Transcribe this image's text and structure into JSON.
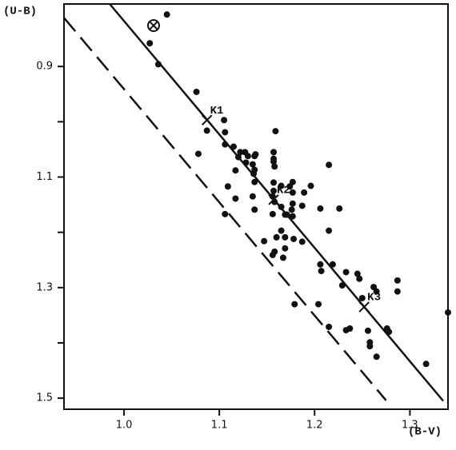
{
  "chart_data": {
    "type": "scatter",
    "y_label": "(U-B)",
    "x_label": "(B-V)",
    "xlim": [
      0.937,
      1.34
    ],
    "xticks": [
      {
        "value": 1.0,
        "label": "1.0"
      },
      1.1,
      1.2,
      1.3
    ],
    "ylim": [
      1.52,
      0.787
    ],
    "yticks": [
      0.9,
      1.1,
      1.3,
      1.5
    ],
    "yminor_ticks": [
      1.0,
      1.2,
      1.4
    ],
    "color": "#111111",
    "x": [
      1.045,
      1.027,
      1.036,
      1.076,
      1.078,
      1.087,
      1.105,
      1.106,
      1.106,
      1.115,
      1.122,
      1.12,
      1.127,
      1.13,
      1.137,
      1.138,
      1.128,
      1.135,
      1.137,
      1.159,
      1.157,
      1.157,
      1.157,
      1.158,
      1.136,
      1.137,
      1.157,
      1.117,
      1.109,
      1.117,
      1.106,
      1.135,
      1.137,
      1.157,
      1.156,
      1.158,
      1.165,
      1.174,
      1.177,
      1.189,
      1.196,
      1.215,
      1.206,
      1.226,
      1.177,
      1.165,
      1.176,
      1.187,
      1.156,
      1.169,
      1.177,
      1.165,
      1.169,
      1.16,
      1.158,
      1.156,
      1.169,
      1.167,
      1.147,
      1.171,
      1.178,
      1.187,
      1.215,
      1.206,
      1.207,
      1.219,
      1.233,
      1.229,
      1.245,
      1.247,
      1.25,
      1.262,
      1.265,
      1.287,
      1.287,
      1.233,
      1.237,
      1.215,
      1.204,
      1.179,
      1.256,
      1.258,
      1.258,
      1.265,
      1.276,
      1.278,
      1.317,
      1.34,
      1.177
    ],
    "values": [
      0.806,
      0.858,
      0.896,
      0.946,
      1.058,
      1.016,
      0.997,
      1.019,
      1.041,
      1.045,
      1.055,
      1.064,
      1.055,
      1.062,
      1.062,
      1.059,
      1.074,
      1.077,
      1.087,
      1.017,
      1.055,
      1.067,
      1.072,
      1.081,
      1.094,
      1.109,
      1.11,
      1.088,
      1.117,
      1.139,
      1.167,
      1.135,
      1.159,
      1.125,
      1.135,
      1.145,
      1.116,
      1.117,
      1.128,
      1.128,
      1.116,
      1.078,
      1.157,
      1.157,
      1.148,
      1.154,
      1.159,
      1.152,
      1.167,
      1.168,
      1.171,
      1.197,
      1.209,
      1.209,
      1.235,
      1.241,
      1.229,
      1.246,
      1.216,
      1.168,
      1.212,
      1.217,
      1.197,
      1.258,
      1.27,
      1.258,
      1.272,
      1.296,
      1.275,
      1.284,
      1.319,
      1.299,
      1.307,
      1.287,
      1.307,
      1.377,
      1.374,
      1.371,
      1.33,
      1.33,
      1.378,
      1.399,
      1.406,
      1.425,
      1.374,
      1.38,
      1.438,
      1.345,
      1.109
    ],
    "special_point": {
      "x": 1.031,
      "y": 0.826
    },
    "labeled_points": [
      {
        "label": "K1",
        "x": 1.087,
        "y": 0.997
      },
      {
        "label": "K2",
        "x": 1.157,
        "y": 1.141
      },
      {
        "label": "K3",
        "x": 1.252,
        "y": 1.335
      }
    ],
    "lines": [
      {
        "style": "solid",
        "x": [
          0.985,
          1.335
        ],
        "y": [
          0.787,
          1.505
        ]
      },
      {
        "style": "dashed",
        "x": [
          0.937,
          1.275
        ],
        "y": [
          0.812,
          1.504
        ]
      }
    ]
  }
}
